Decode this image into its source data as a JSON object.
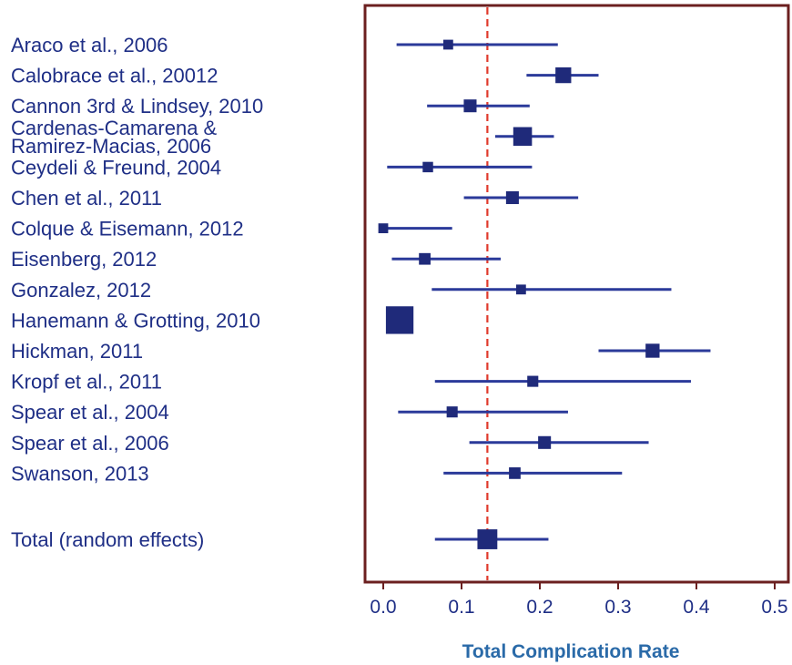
{
  "chart_data": {
    "type": "forest",
    "xlabel": "Total Complication Rate",
    "xlim": [
      -0.02,
      0.52
    ],
    "xticks": [
      0.0,
      0.1,
      0.2,
      0.3,
      0.4,
      0.5
    ],
    "xtick_labels": [
      "0.0",
      "0.1",
      "0.2",
      "0.3",
      "0.4",
      "0.5"
    ],
    "reference_line": 0.133,
    "colors": {
      "marker": "#1f2a7a",
      "ci_line": "#2b3a9a",
      "label": "#1f2f86",
      "frame": "#6b1f1f",
      "reference": "#e0392b",
      "axis_title": "#2a6aa8"
    },
    "studies": [
      {
        "label": [
          "Araco et al., 2006"
        ],
        "estimate": 0.083,
        "ci_low": 0.017,
        "ci_high": 0.223,
        "weight": 0.6
      },
      {
        "label": [
          "Calobrace et al., 20012"
        ],
        "estimate": 0.23,
        "ci_low": 0.183,
        "ci_high": 0.275,
        "weight": 1.1
      },
      {
        "label": [
          "Cannon 3rd & Lindsey, 2010"
        ],
        "estimate": 0.111,
        "ci_low": 0.056,
        "ci_high": 0.187,
        "weight": 0.85
      },
      {
        "label": [
          "Cardenas-Camarena &",
          "Ramirez-Macias, 2006"
        ],
        "estimate": 0.178,
        "ci_low": 0.143,
        "ci_high": 0.218,
        "weight": 1.35
      },
      {
        "label": [
          "Ceydeli  & Freund, 2004"
        ],
        "estimate": 0.057,
        "ci_low": 0.005,
        "ci_high": 0.19,
        "weight": 0.65
      },
      {
        "label": [
          "Chen et al., 2011"
        ],
        "estimate": 0.165,
        "ci_low": 0.103,
        "ci_high": 0.249,
        "weight": 0.85
      },
      {
        "label": [
          "Colque & Eisemann, 2012"
        ],
        "estimate": 0.0,
        "ci_low": 0.0,
        "ci_high": 0.088,
        "weight": 0.6
      },
      {
        "label": [
          "Eisenberg, 2012"
        ],
        "estimate": 0.053,
        "ci_low": 0.011,
        "ci_high": 0.15,
        "weight": 0.75
      },
      {
        "label": [
          "Gonzalez, 2012"
        ],
        "estimate": 0.176,
        "ci_low": 0.062,
        "ci_high": 0.368,
        "weight": 0.6
      },
      {
        "label": [
          "Hanemann & Grotting, 2010"
        ],
        "estimate": 0.021,
        "ci_low": 0.018,
        "ci_high": 0.024,
        "weight": 2.1
      },
      {
        "label": [
          "Hickman, 2011"
        ],
        "estimate": 0.344,
        "ci_low": 0.275,
        "ci_high": 0.418,
        "weight": 0.95
      },
      {
        "label": [
          "Kropf et al., 2011"
        ],
        "estimate": 0.191,
        "ci_low": 0.066,
        "ci_high": 0.393,
        "weight": 0.7
      },
      {
        "label": [
          "Spear et al., 2004"
        ],
        "estimate": 0.088,
        "ci_low": 0.019,
        "ci_high": 0.236,
        "weight": 0.7
      },
      {
        "label": [
          "Spear et al., 2006"
        ],
        "estimate": 0.206,
        "ci_low": 0.11,
        "ci_high": 0.339,
        "weight": 0.85
      },
      {
        "label": [
          "Swanson, 2013"
        ],
        "estimate": 0.168,
        "ci_low": 0.077,
        "ci_high": 0.305,
        "weight": 0.75
      },
      {
        "label": [
          "Total (random effects)"
        ],
        "estimate": 0.133,
        "ci_low": 0.066,
        "ci_high": 0.211,
        "weight": 1.45
      }
    ]
  }
}
